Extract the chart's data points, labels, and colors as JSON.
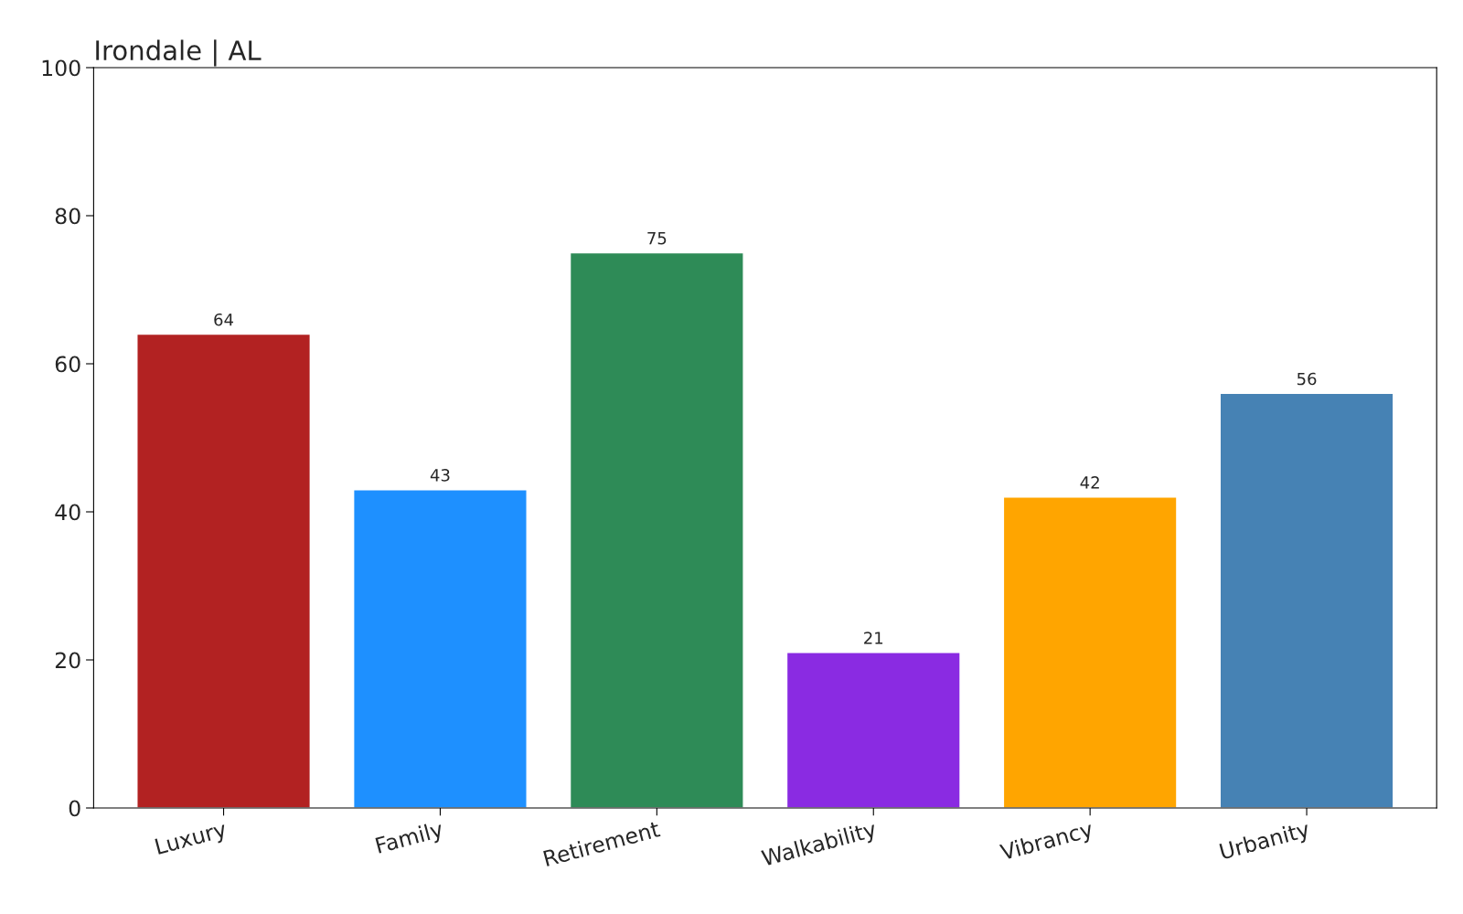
{
  "chart_data": {
    "type": "bar",
    "title": "Irondale | AL",
    "categories": [
      "Luxury",
      "Family",
      "Retirement",
      "Walkability",
      "Vibrancy",
      "Urbanity"
    ],
    "values": [
      64,
      43,
      75,
      21,
      42,
      56
    ],
    "colors": [
      "#b22222",
      "#1e90ff",
      "#2e8b57",
      "#8a2be2",
      "#ffa500",
      "#4682b4"
    ],
    "ylim": [
      0,
      100
    ],
    "yticks": [
      0,
      20,
      40,
      60,
      80,
      100
    ],
    "data_labels": true,
    "grid": false,
    "legend": false
  }
}
